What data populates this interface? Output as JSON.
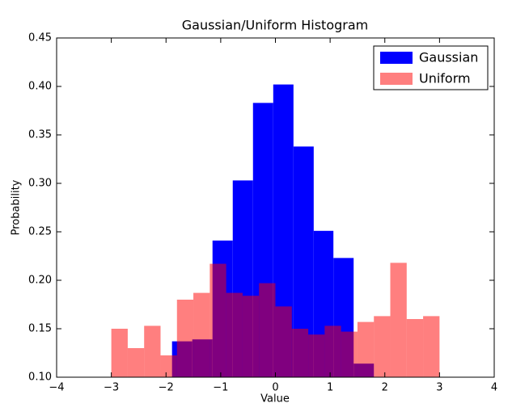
{
  "chart_data": {
    "type": "histogram",
    "title": "Gaussian/Uniform Histogram",
    "x_label": "Value",
    "y_label": "Probability",
    "series": [
      {
        "name": "Gaussian",
        "color": "#0000ff",
        "opacity": 1,
        "bins": [
          -1.89,
          -1.52,
          -1.15,
          -0.78,
          -0.41,
          -0.04,
          0.33,
          0.7,
          1.06,
          1.43,
          1.8
        ],
        "values": [
          0.137,
          0.139,
          0.241,
          0.303,
          0.383,
          0.402,
          0.338,
          0.251,
          0.223,
          0.114
        ]
      },
      {
        "name": "Uniform",
        "color": "#ff0000",
        "opacity": 0.5,
        "bins": [
          -3,
          -2.7,
          -2.4,
          -2.1,
          -1.8,
          -1.5,
          -1.2,
          -0.9,
          -0.6,
          -0.3,
          0,
          0.3,
          0.6,
          0.9,
          1.2,
          1.5,
          1.8,
          2.1,
          2.4,
          2.7,
          3
        ],
        "values": [
          0.15,
          0.13,
          0.153,
          0.1225,
          0.18,
          0.187,
          0.217,
          0.187,
          0.184,
          0.197,
          0.173,
          0.15,
          0.144,
          0.153,
          0.147,
          0.157,
          0.163,
          0.218,
          0.16,
          0.163
        ]
      }
    ],
    "xlim": [
      -4,
      4
    ],
    "xticks": [
      {
        "value": -4,
        "label": "−4"
      },
      {
        "value": -3,
        "label": "−3"
      },
      {
        "value": -2,
        "label": "−2"
      },
      {
        "value": -1,
        "label": "−1"
      },
      0,
      1,
      2,
      3,
      4
    ],
    "ylim": [
      0.1,
      0.45
    ],
    "yticks": [
      {
        "value": 0.1,
        "label": "0.10"
      },
      0.15,
      {
        "value": 0.2,
        "label": "0.20"
      },
      0.25,
      {
        "value": 0.3,
        "label": "0.30"
      },
      0.35,
      {
        "value": 0.4,
        "label": "0.40"
      },
      0.45
    ],
    "legend": "upper right"
  }
}
